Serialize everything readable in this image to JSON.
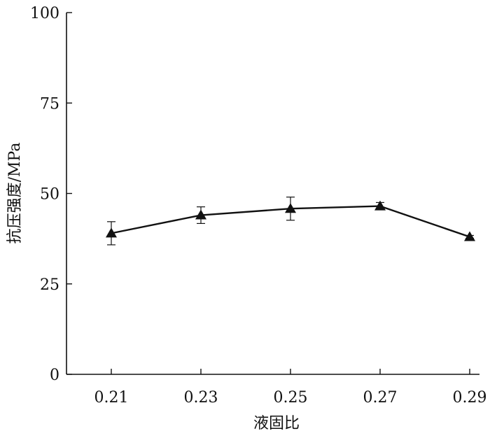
{
  "chart_data": {
    "type": "line",
    "title": "",
    "xlabel": "液固比",
    "ylabel": "抗压强度/MPa",
    "x": [
      0.21,
      0.23,
      0.25,
      0.27,
      0.29
    ],
    "x_tick_labels": [
      "0.21",
      "0.23",
      "0.25",
      "0.27",
      "0.29"
    ],
    "y_ticks": [
      0,
      25,
      50,
      75,
      100
    ],
    "y_tick_labels": [
      "0",
      "25",
      "50",
      "75",
      "100"
    ],
    "ylim": [
      0,
      100
    ],
    "grid": false,
    "legend": "none",
    "series": [
      {
        "values": [
          39.0,
          44.0,
          45.8,
          46.5,
          38.0
        ],
        "error": [
          3.2,
          2.3,
          3.2,
          1.0,
          0.4
        ],
        "marker": "triangle",
        "color": "#111111"
      }
    ]
  }
}
